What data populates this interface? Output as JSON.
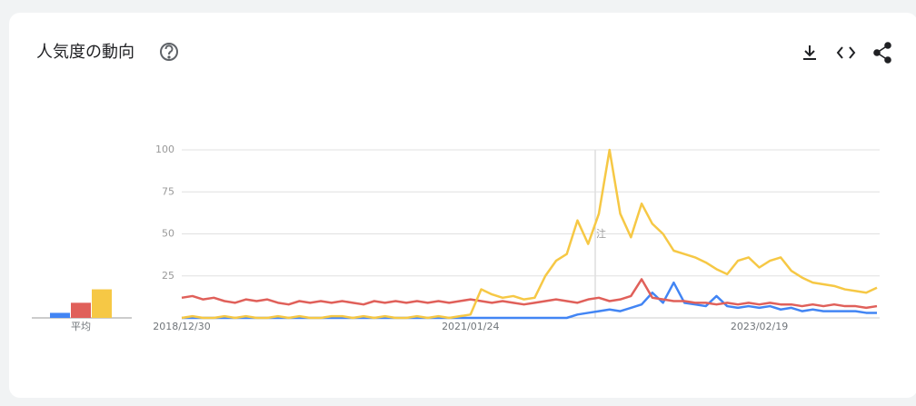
{
  "header": {
    "title": "人気度の動向"
  },
  "chart_data": [
    {
      "type": "bar",
      "categories": [
        "平均"
      ],
      "ylim": [
        0,
        100
      ],
      "series": [
        {
          "color": "#4285f4",
          "values": [
            3
          ]
        },
        {
          "color": "#e0605a",
          "values": [
            9
          ]
        },
        {
          "color": "#f6c845",
          "values": [
            17
          ]
        }
      ]
    },
    {
      "type": "line",
      "annotation": "注",
      "categories": [
        "2018/12/30",
        null,
        null,
        null,
        null,
        null,
        null,
        null,
        null,
        null,
        null,
        null,
        null,
        null,
        null,
        null,
        null,
        null,
        null,
        null,
        null,
        null,
        null,
        null,
        null,
        null,
        null,
        "2021/01/24",
        null,
        null,
        null,
        null,
        null,
        null,
        null,
        null,
        null,
        null,
        null,
        null,
        null,
        null,
        null,
        null,
        null,
        null,
        null,
        null,
        null,
        null,
        null,
        null,
        null,
        null,
        "2023/02/19",
        null,
        null,
        null,
        null,
        null,
        null,
        null,
        null,
        null,
        null,
        null
      ],
      "ylim": [
        0,
        100
      ],
      "yticks": [
        25,
        50,
        75,
        100
      ],
      "grid": true,
      "series": [
        {
          "color": "#4285f4",
          "values": [
            0,
            0,
            0,
            0,
            0,
            0,
            0,
            0,
            0,
            0,
            0,
            0,
            0,
            0,
            0,
            0,
            0,
            0,
            0,
            0,
            0,
            0,
            0,
            0,
            0,
            0,
            0,
            0,
            0,
            0,
            0,
            0,
            0,
            0,
            0,
            0,
            0,
            2,
            3,
            4,
            5,
            4,
            6,
            8,
            15,
            9,
            21,
            9,
            8,
            7,
            13,
            7,
            6,
            7,
            6,
            7,
            5,
            6,
            4,
            5,
            4,
            4,
            4,
            4,
            3,
            3
          ]
        },
        {
          "color": "#e0605a",
          "values": [
            12,
            13,
            11,
            12,
            10,
            9,
            11,
            10,
            11,
            9,
            8,
            10,
            9,
            10,
            9,
            10,
            9,
            8,
            10,
            9,
            10,
            9,
            10,
            9,
            10,
            9,
            10,
            11,
            10,
            9,
            10,
            9,
            8,
            9,
            10,
            11,
            10,
            9,
            11,
            12,
            10,
            11,
            13,
            23,
            12,
            11,
            10,
            10,
            9,
            9,
            8,
            9,
            8,
            9,
            8,
            9,
            8,
            8,
            7,
            8,
            7,
            8,
            7,
            7,
            6,
            7
          ]
        },
        {
          "color": "#f6c845",
          "values": [
            0,
            1,
            0,
            0,
            1,
            0,
            1,
            0,
            0,
            1,
            0,
            1,
            0,
            0,
            1,
            1,
            0,
            1,
            0,
            1,
            0,
            0,
            1,
            0,
            1,
            0,
            1,
            2,
            17,
            14,
            12,
            13,
            11,
            12,
            25,
            34,
            38,
            58,
            44,
            62,
            100,
            62,
            48,
            68,
            56,
            50,
            40,
            38,
            36,
            33,
            29,
            26,
            34,
            36,
            30,
            34,
            36,
            28,
            24,
            21,
            20,
            19,
            17,
            16,
            15,
            18
          ]
        }
      ]
    }
  ]
}
